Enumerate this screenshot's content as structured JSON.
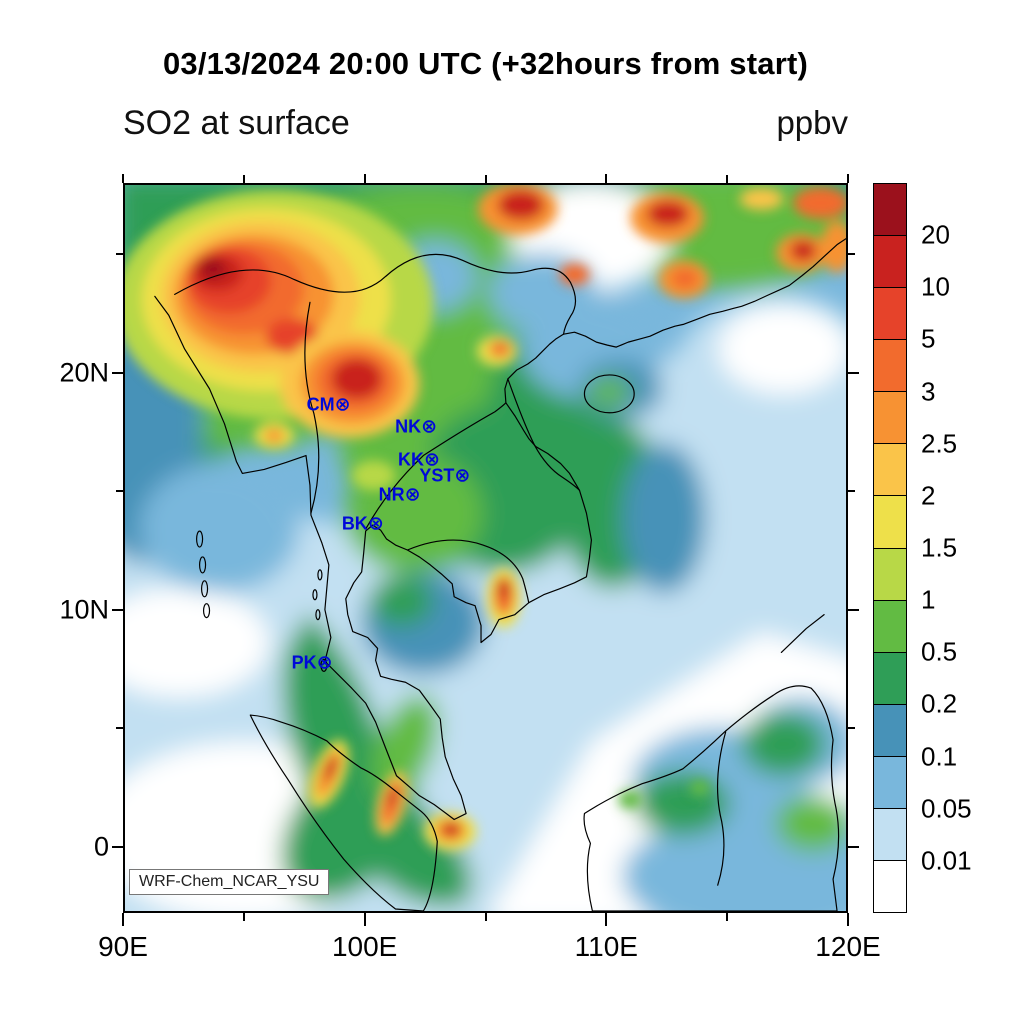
{
  "title": "03/13/2024 20:00 UTC (+32hours from start)",
  "field_label": "SO2 at surface",
  "units_label": "ppbv",
  "credit_label": "WRF-Chem_NCAR_YSU",
  "chart_data": {
    "type": "heatmap",
    "title": "SO2 at surface",
    "units": "ppbv",
    "valid_time_title": "03/13/2024 20:00 UTC (+32hours from start)",
    "model_label": "WRF-Chem_NCAR_YSU",
    "lon_range": [
      90,
      120
    ],
    "lat_range": [
      -2.8,
      28.0
    ],
    "x_ticks": [
      {
        "deg": 90,
        "label": "90E"
      },
      {
        "deg": 100,
        "label": "100E"
      },
      {
        "deg": 110,
        "label": "110E"
      },
      {
        "deg": 120,
        "label": "120E"
      }
    ],
    "x_minor_ticks": [
      95,
      105,
      115
    ],
    "y_ticks": [
      {
        "deg": 20,
        "label": "20N"
      },
      {
        "deg": 10,
        "label": "10N"
      },
      {
        "deg": 0,
        "label": "0"
      }
    ],
    "y_minor_ticks": [
      25,
      15,
      5
    ],
    "colorbar": {
      "title": "ppbv",
      "levels_top_to_bottom": [
        "20",
        "10",
        "5",
        "3",
        "2.5",
        "2",
        "1.5",
        "1",
        "0.5",
        "0.2",
        "0.1",
        "0.05",
        "0.01"
      ],
      "colors_top_to_bottom": [
        "#9b111c",
        "#c9221f",
        "#e6432a",
        "#f26b2d",
        "#f79233",
        "#fac449",
        "#eee04a",
        "#b8d847",
        "#62bb43",
        "#2f9e57",
        "#4792b8",
        "#79b7dc",
        "#c2e0f2",
        "#ffffff"
      ]
    },
    "stations": [
      {
        "id": "CM",
        "x_pct": 29.9,
        "y_pct": 30.3
      },
      {
        "id": "NK",
        "x_pct": 41.9,
        "y_pct": 33.3
      },
      {
        "id": "KK",
        "x_pct": 42.3,
        "y_pct": 37.9
      },
      {
        "id": "YST",
        "x_pct": 46.5,
        "y_pct": 40.1
      },
      {
        "id": "NR",
        "x_pct": 39.6,
        "y_pct": 42.7
      },
      {
        "id": "BK",
        "x_pct": 34.5,
        "y_pct": 46.7
      },
      {
        "id": "PK",
        "x_pct": 27.4,
        "y_pct": 65.9
      }
    ],
    "station_marker": "⊗",
    "station_color": "#0008d8"
  }
}
